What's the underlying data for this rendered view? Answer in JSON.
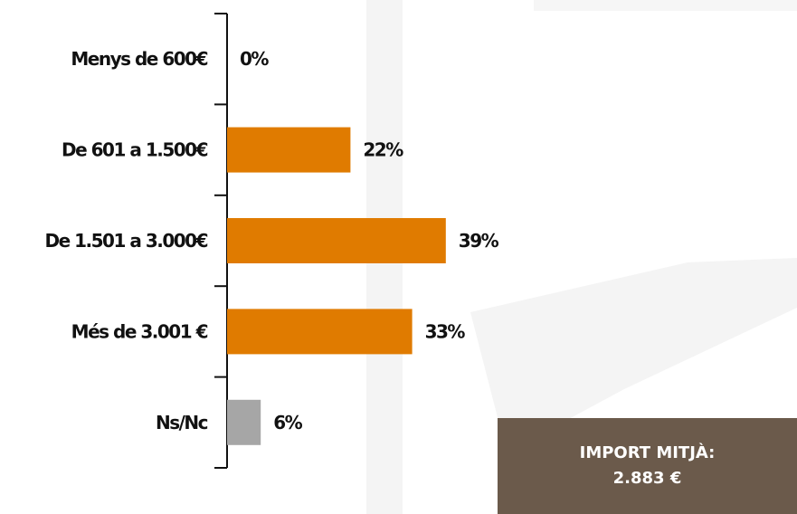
{
  "chart_data": {
    "type": "bar",
    "orientation": "horizontal",
    "categories": [
      "Menys de 600€",
      "De 601 a 1.500€",
      "De 1.501 a 3.000€",
      "Més de 3.001 €",
      "Ns/Nc"
    ],
    "values": [
      0,
      22,
      39,
      33,
      6
    ],
    "value_labels": [
      "0%",
      "22%",
      "39%",
      "33%",
      "6%"
    ],
    "unit": "%",
    "xlim": [
      0,
      100
    ],
    "grid": false,
    "legend": "none",
    "colors": [
      "#e07b00",
      "#e07b00",
      "#e07b00",
      "#e07b00",
      "#a6a6a6"
    ]
  },
  "summary": {
    "title": "IMPORT MITJÀ:",
    "value": "2.883 €",
    "background": "#6b5a4b"
  },
  "colors": {
    "bar_main": "#e07b00",
    "bar_nsnc": "#a6a6a6",
    "watermark": "#f3f3f3"
  }
}
